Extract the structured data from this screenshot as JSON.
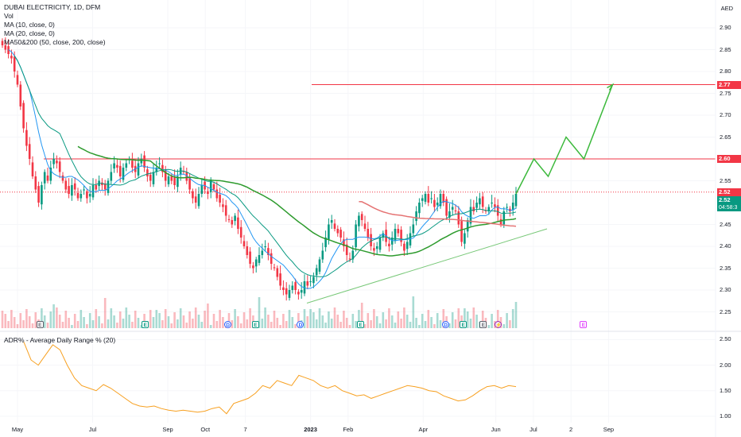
{
  "legend": {
    "title": "DUBAI ELECTRICITY, 1D, DFM",
    "vol": "Vol",
    "ma10": "MA (10, close, 0)",
    "ma20": "MA (20, close, 0)",
    "ma50_200": "MA50&200 (50, close, 200, close)"
  },
  "indicator": {
    "label": "ADR% - Average Daily Range % (20)"
  },
  "currency": "AED",
  "price_axis": {
    "ticks": [
      "2.90",
      "2.85",
      "2.80",
      "2.75",
      "2.70",
      "2.65",
      "2.55",
      "2.45",
      "2.40",
      "2.35",
      "2.30",
      "2.25"
    ],
    "tick_values": [
      2.9,
      2.85,
      2.8,
      2.75,
      2.7,
      2.65,
      2.55,
      2.45,
      2.4,
      2.35,
      2.3,
      2.25
    ]
  },
  "adr_axis": {
    "ticks": [
      "2.50",
      "2.00",
      "1.50",
      "1.00"
    ],
    "tick_values": [
      2.5,
      2.0,
      1.5,
      1.0
    ]
  },
  "price_tags": [
    {
      "label": "2.77",
      "value": 2.77,
      "color": "#f23645"
    },
    {
      "label": "2.60",
      "value": 2.6,
      "color": "#f23645"
    },
    {
      "label": "2.52",
      "value": 2.524,
      "color": "#f23645"
    },
    {
      "label": "2.52",
      "value": 2.505,
      "color": "#089981"
    }
  ],
  "countdown": "04:58:3",
  "time_axis": [
    {
      "label": "May",
      "x": 0
    },
    {
      "label": "Jul",
      "x": 30
    },
    {
      "label": "Sep",
      "x": 60
    },
    {
      "label": "Oct",
      "x": 75
    },
    {
      "label": "7",
      "x": 91
    },
    {
      "label": "2023",
      "x": 117
    },
    {
      "label": "Feb",
      "x": 132
    },
    {
      "label": "Apr",
      "x": 162
    },
    {
      "label": "Jun",
      "x": 191
    },
    {
      "label": "Jul",
      "x": 206
    },
    {
      "label": "2",
      "x": 221
    },
    {
      "label": "Sep",
      "x": 236
    }
  ],
  "events": [
    {
      "type": "e-dark",
      "label": "E",
      "x": 9
    },
    {
      "type": "e",
      "label": "E",
      "x": 51
    },
    {
      "type": "d",
      "label": "D",
      "x": 84
    },
    {
      "type": "e",
      "label": "E",
      "x": 95
    },
    {
      "type": "d",
      "label": "D",
      "x": 113
    },
    {
      "type": "e",
      "label": "E",
      "x": 137
    },
    {
      "type": "d",
      "label": "D",
      "x": 171
    },
    {
      "type": "e",
      "label": "E",
      "x": 178
    },
    {
      "type": "e-dark",
      "label": "E",
      "x": 186
    },
    {
      "type": "split",
      "label": "⚡",
      "x": 192
    },
    {
      "type": "e-purple",
      "label": "E",
      "x": 226
    }
  ],
  "colors": {
    "up": "#089981",
    "down": "#f23645",
    "ma10": "#2196f3",
    "ma20": "#089981",
    "ma50": "#2e9b2e",
    "ma200": "#e57373",
    "adr": "#f7a020",
    "projection": "#3cb93c",
    "trendline": "#78c878",
    "hline": "#f23645"
  },
  "chart_data": {
    "type": "candlestick",
    "symbol": "DUBAI ELECTRICITY",
    "interval": "1D",
    "exchange": "DFM",
    "horizontal_levels": [
      2.77,
      2.6,
      2.524
    ],
    "closes": [
      2.86,
      2.85,
      2.84,
      2.83,
      2.8,
      2.77,
      2.72,
      2.67,
      2.63,
      2.6,
      2.56,
      2.53,
      2.5,
      2.54,
      2.57,
      2.55,
      2.58,
      2.6,
      2.59,
      2.57,
      2.55,
      2.53,
      2.52,
      2.54,
      2.53,
      2.51,
      2.52,
      2.53,
      2.51,
      2.52,
      2.54,
      2.53,
      2.55,
      2.54,
      2.53,
      2.55,
      2.57,
      2.59,
      2.58,
      2.56,
      2.58,
      2.59,
      2.6,
      2.58,
      2.57,
      2.59,
      2.6,
      2.58,
      2.56,
      2.55,
      2.57,
      2.58,
      2.59,
      2.57,
      2.55,
      2.56,
      2.55,
      2.54,
      2.56,
      2.58,
      2.57,
      2.55,
      2.53,
      2.51,
      2.5,
      2.52,
      2.54,
      2.53,
      2.52,
      2.55,
      2.53,
      2.51,
      2.5,
      2.49,
      2.47,
      2.46,
      2.45,
      2.47,
      2.44,
      2.42,
      2.4,
      2.38,
      2.36,
      2.35,
      2.37,
      2.38,
      2.39,
      2.4,
      2.38,
      2.36,
      2.35,
      2.33,
      2.31,
      2.3,
      2.29,
      2.3,
      2.31,
      2.3,
      2.29,
      2.3,
      2.32,
      2.31,
      2.32,
      2.33,
      2.35,
      2.37,
      2.39,
      2.42,
      2.45,
      2.46,
      2.44,
      2.43,
      2.42,
      2.4,
      2.38,
      2.37,
      2.39,
      2.45,
      2.47,
      2.46,
      2.44,
      2.42,
      2.4,
      2.39,
      2.4,
      2.42,
      2.43,
      2.41,
      2.4,
      2.42,
      2.44,
      2.43,
      2.41,
      2.39,
      2.41,
      2.43,
      2.45,
      2.48,
      2.5,
      2.51,
      2.52,
      2.5,
      2.51,
      2.49,
      2.5,
      2.52,
      2.5,
      2.47,
      2.48,
      2.49,
      2.48,
      2.45,
      2.41,
      2.43,
      2.46,
      2.49,
      2.48,
      2.5,
      2.51,
      2.49,
      2.48,
      2.49,
      2.5,
      2.49,
      2.47,
      2.45,
      2.48,
      2.49,
      2.48,
      2.5,
      2.52
    ],
    "projection": [
      [
        2.52,
        0
      ],
      [
        2.6,
        5
      ],
      [
        2.56,
        9
      ],
      [
        2.65,
        14
      ],
      [
        2.6,
        19
      ],
      [
        2.77,
        27
      ]
    ],
    "adr_values": [
      2.45,
      2.1,
      2.0,
      2.2,
      2.4,
      2.3,
      2.0,
      1.75,
      1.6,
      1.55,
      1.5,
      1.62,
      1.55,
      1.45,
      1.35,
      1.25,
      1.2,
      1.18,
      1.2,
      1.15,
      1.12,
      1.1,
      1.12,
      1.1,
      1.08,
      1.1,
      1.15,
      1.18,
      1.05,
      1.25,
      1.3,
      1.35,
      1.45,
      1.6,
      1.55,
      1.7,
      1.65,
      1.6,
      1.8,
      1.75,
      1.7,
      1.6,
      1.55,
      1.6,
      1.5,
      1.45,
      1.4,
      1.42,
      1.35,
      1.4,
      1.45,
      1.5,
      1.55,
      1.6,
      1.58,
      1.55,
      1.5,
      1.48,
      1.4,
      1.35,
      1.3,
      1.32,
      1.4,
      1.5,
      1.58,
      1.6,
      1.55,
      1.6,
      1.58
    ]
  }
}
